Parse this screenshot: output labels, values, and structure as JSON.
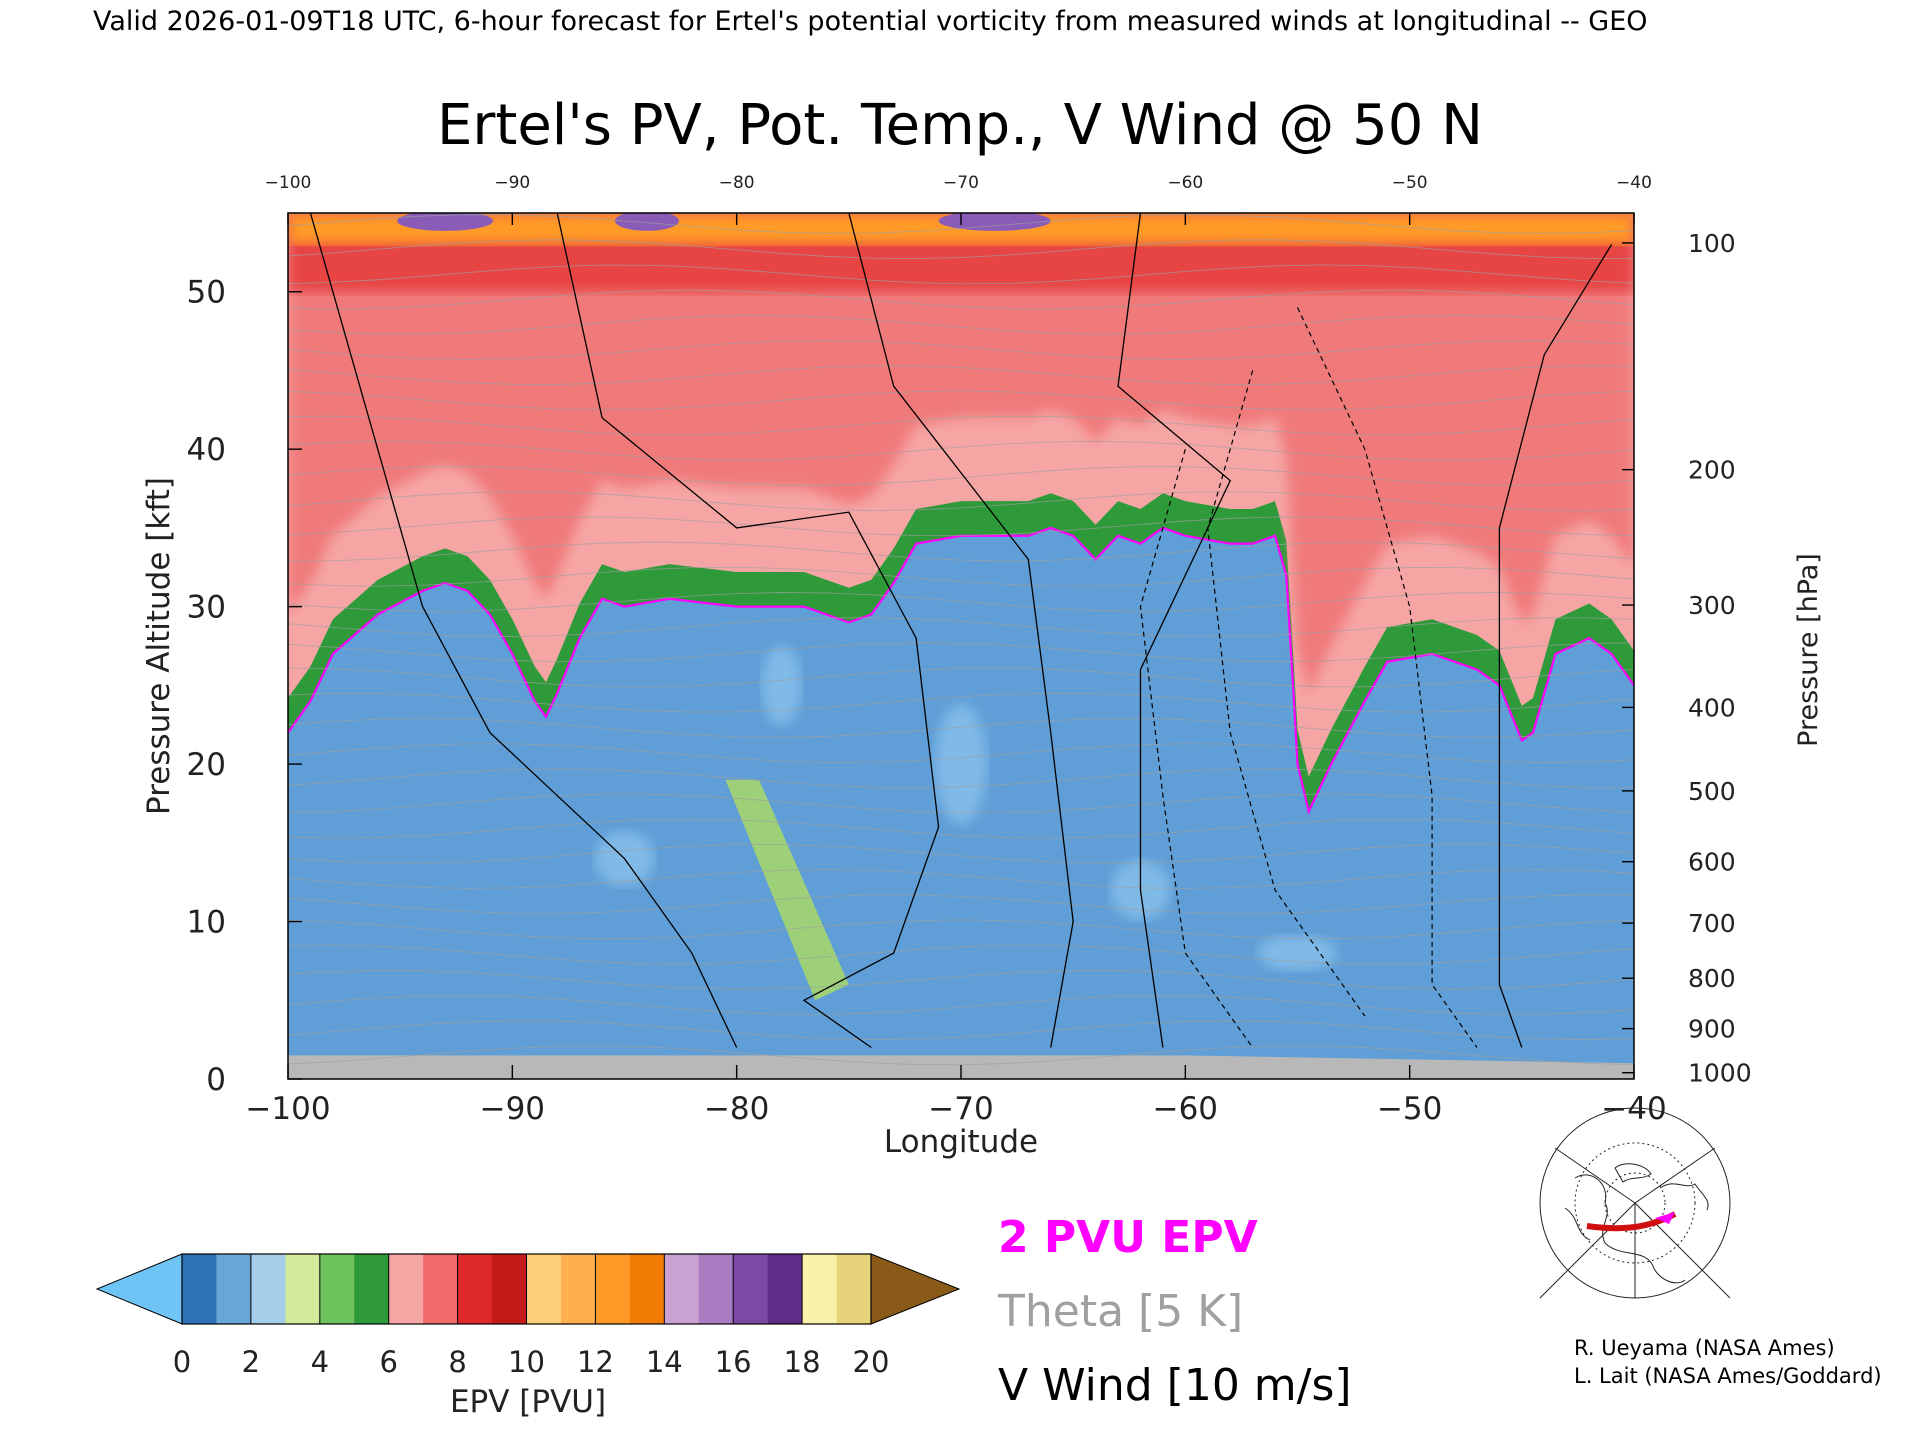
{
  "header": {
    "valid_line": "Valid 2026-01-09T18 UTC, 6-hour forecast for Ertel's potential vorticity from measured winds at longitudinal -- GEO"
  },
  "chart_data": {
    "type": "heatmap",
    "title": "Ertel's PV, Pot. Temp., V Wind @ 50 N",
    "xlabel": "Longitude",
    "ylabel": "Pressure Altitude [kft]",
    "y2label": "Pressure [hPa]",
    "xlim": [
      -100,
      -40
    ],
    "ylim": [
      0,
      55
    ],
    "x_ticks": [
      "-100",
      "-90",
      "-80",
      "-70",
      "-60",
      "-50",
      "-40"
    ],
    "x_tick_values": [
      -100,
      -90,
      -80,
      -70,
      -60,
      -50,
      -40
    ],
    "y_ticks": [
      "0",
      "10",
      "20",
      "30",
      "40",
      "50"
    ],
    "y_tick_values": [
      0,
      10,
      20,
      30,
      40,
      50
    ],
    "pressure_ticks": [
      {
        "label": "100",
        "kft": 53.1
      },
      {
        "label": "200",
        "kft": 38.7
      },
      {
        "label": "300",
        "kft": 30.1
      },
      {
        "label": "400",
        "kft": 23.6
      },
      {
        "label": "500",
        "kft": 18.3
      },
      {
        "label": "600",
        "kft": 13.8
      },
      {
        "label": "700",
        "kft": 9.9
      },
      {
        "label": "800",
        "kft": 6.4
      },
      {
        "label": "900",
        "kft": 3.2
      },
      {
        "label": "1000",
        "kft": 0.4
      }
    ],
    "tropopause_2pvu_kft": [
      [
        -100,
        22.0
      ],
      [
        -99,
        24.0
      ],
      [
        -98,
        27.0
      ],
      [
        -96,
        29.5
      ],
      [
        -94,
        31.0
      ],
      [
        -93,
        31.5
      ],
      [
        -92,
        31.0
      ],
      [
        -91,
        29.5
      ],
      [
        -90,
        27.0
      ],
      [
        -89,
        24.0
      ],
      [
        -88.5,
        23.0
      ],
      [
        -88,
        24.5
      ],
      [
        -87,
        28.0
      ],
      [
        -86,
        30.5
      ],
      [
        -85,
        30.0
      ],
      [
        -83,
        30.5
      ],
      [
        -80,
        30.0
      ],
      [
        -77,
        30.0
      ],
      [
        -75,
        29.0
      ],
      [
        -74,
        29.5
      ],
      [
        -73,
        31.5
      ],
      [
        -72,
        34.0
      ],
      [
        -70,
        34.5
      ],
      [
        -67,
        34.5
      ],
      [
        -66,
        35.0
      ],
      [
        -65,
        34.5
      ],
      [
        -64,
        33.0
      ],
      [
        -63,
        34.5
      ],
      [
        -62,
        34.0
      ],
      [
        -61,
        35.0
      ],
      [
        -60,
        34.5
      ],
      [
        -58,
        34.0
      ],
      [
        -57,
        34.0
      ],
      [
        -56,
        34.5
      ],
      [
        -55.5,
        32.0
      ],
      [
        -55.2,
        25.0
      ],
      [
        -55,
        20.0
      ],
      [
        -54.5,
        17.0
      ],
      [
        -53.5,
        20.0
      ],
      [
        -52,
        24.0
      ],
      [
        -51,
        26.5
      ],
      [
        -49,
        27.0
      ],
      [
        -47,
        26.0
      ],
      [
        -46,
        25.0
      ],
      [
        -45,
        21.5
      ],
      [
        -44.5,
        22.0
      ],
      [
        -43.5,
        27.0
      ],
      [
        -42,
        28.0
      ],
      [
        -41,
        27.0
      ],
      [
        -40,
        25.0
      ]
    ],
    "colorbar": {
      "label": "EPV [PVU]",
      "ticks": [
        "0",
        "2",
        "4",
        "6",
        "8",
        "10",
        "12",
        "14",
        "16",
        "18",
        "20"
      ],
      "colors": [
        "#2f72b7",
        "#6aa5d8",
        "#a6cde9",
        "#d3ea9a",
        "#6dc25c",
        "#2e9a3a",
        "#f6a5a5",
        "#f06a6a",
        "#e02a2a",
        "#c41a1a",
        "#ffd079",
        "#ffb04e",
        "#ff9a26",
        "#f07c05",
        "#c9a2d2",
        "#a97bc0",
        "#7c4aa6",
        "#5e2d8a",
        "#f7f2a8",
        "#e6d37a"
      ],
      "under_color": "#6ec4f4",
      "over_color": "#8a5a18"
    },
    "legend": {
      "epv": "2 PVU EPV",
      "theta": "Theta [5 K]",
      "wind": "V Wind [10 m/s]",
      "epv_color": "#ff00ff",
      "theta_color": "#a0a0a0"
    }
  },
  "credits": {
    "line1": "R. Ueyama (NASA Ames)",
    "line2": "L. Lait (NASA Ames/Goddard)"
  },
  "map_inset": {
    "icon": "polar-map-icon"
  }
}
